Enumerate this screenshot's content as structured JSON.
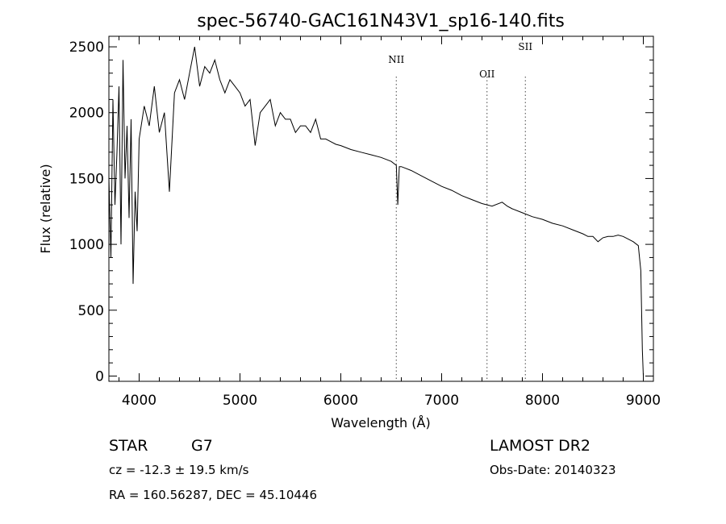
{
  "chart_data": {
    "type": "line",
    "title": "spec-56740-GAC161N43V1_sp16-140.fits",
    "xlabel": "Wavelength (Å)",
    "ylabel": "Flux (relative)",
    "xlim": [
      3700,
      9100
    ],
    "ylim": [
      -40,
      2580
    ],
    "xticks": [
      4000,
      5000,
      6000,
      7000,
      8000,
      9000
    ],
    "yticks": [
      0,
      500,
      1000,
      1500,
      2000,
      2500
    ],
    "grid": false,
    "x": [
      3700,
      3720,
      3740,
      3760,
      3780,
      3800,
      3820,
      3840,
      3860,
      3880,
      3900,
      3920,
      3940,
      3960,
      3980,
      4000,
      4050,
      4100,
      4150,
      4200,
      4250,
      4300,
      4350,
      4400,
      4450,
      4500,
      4550,
      4600,
      4650,
      4700,
      4750,
      4800,
      4850,
      4900,
      4950,
      5000,
      5050,
      5100,
      5150,
      5200,
      5250,
      5300,
      5350,
      5400,
      5450,
      5500,
      5550,
      5600,
      5650,
      5700,
      5750,
      5800,
      5850,
      5900,
      5950,
      6000,
      6100,
      6200,
      6300,
      6400,
      6500,
      6550,
      6565,
      6580,
      6600,
      6700,
      6800,
      6900,
      7000,
      7100,
      7200,
      7300,
      7400,
      7500,
      7600,
      7650,
      7700,
      7800,
      7900,
      8000,
      8100,
      8200,
      8300,
      8400,
      8450,
      8500,
      8550,
      8600,
      8650,
      8700,
      8750,
      8800,
      8850,
      8900,
      8950,
      8975,
      8990,
      9000
    ],
    "y": [
      1500,
      900,
      2100,
      1300,
      1700,
      2200,
      1000,
      2400,
      1500,
      1900,
      1200,
      1950,
      700,
      1400,
      1100,
      1800,
      2050,
      1900,
      2200,
      1850,
      2000,
      1400,
      2150,
      2250,
      2100,
      2300,
      2500,
      2200,
      2350,
      2300,
      2400,
      2250,
      2150,
      2250,
      2200,
      2150,
      2050,
      2100,
      1750,
      2000,
      2050,
      2100,
      1900,
      2000,
      1950,
      1950,
      1850,
      1900,
      1900,
      1850,
      1950,
      1800,
      1800,
      1780,
      1760,
      1750,
      1720,
      1700,
      1680,
      1660,
      1630,
      1600,
      1300,
      1590,
      1590,
      1560,
      1520,
      1480,
      1440,
      1410,
      1370,
      1340,
      1310,
      1290,
      1320,
      1290,
      1270,
      1240,
      1210,
      1190,
      1160,
      1140,
      1110,
      1080,
      1060,
      1060,
      1020,
      1050,
      1060,
      1060,
      1070,
      1060,
      1040,
      1020,
      990,
      800,
      200,
      0
    ]
  },
  "annotations": {
    "lines": [
      {
        "label": "NII",
        "wavelength": 6550
      },
      {
        "label": "OII",
        "wavelength": 7450
      },
      {
        "label": "SII",
        "wavelength": 7830
      }
    ]
  },
  "footer": {
    "object": "STAR",
    "subclass": "G7",
    "survey": "LAMOST DR2",
    "cz": "cz = -12.3 ± 19.5 km/s",
    "obs_date": "Obs-Date: 20140323",
    "coords": "RA = 160.56287, DEC =  45.10446"
  }
}
